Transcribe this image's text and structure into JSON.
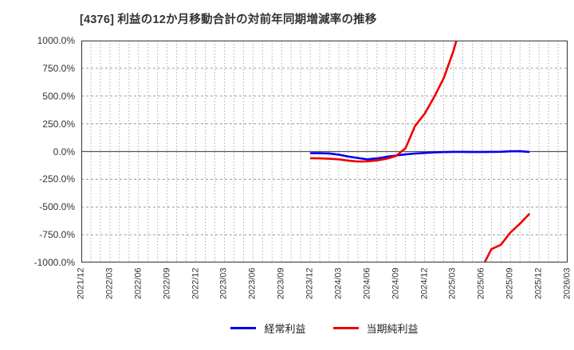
{
  "title": "[4376]  利益の12か月移動合計の対前年同期増減率の推移",
  "chart_data": {
    "type": "line",
    "title": "[4376]  利益の12か月移動合計の対前年同期増減率の推移",
    "x_axis": {
      "tick_labels": [
        "2021/12",
        "2022/03",
        "2022/06",
        "2022/09",
        "2022/12",
        "2023/03",
        "2023/06",
        "2023/09",
        "2023/12",
        "2024/03",
        "2024/06",
        "2024/09",
        "2024/12",
        "2025/03",
        "2025/06",
        "2025/09",
        "2025/12",
        "2026/03"
      ],
      "months_total": 51,
      "tick_interval_months": 3,
      "grid": "monthly-dotted"
    },
    "y_axis": {
      "min": -1000,
      "max": 1000,
      "tick_step": 250,
      "tick_values": [
        1000,
        750,
        500,
        250,
        0,
        -250,
        -500,
        -750,
        -1000
      ],
      "tick_labels": [
        "1000.0%",
        "750.0%",
        "500.0%",
        "250.0%",
        "0.0%",
        "-250.0%",
        "-500.0%",
        "-750.0%",
        "-1000.0%"
      ],
      "unit": "%"
    },
    "legend_position": "bottom-center",
    "series_start_label": "2023/12",
    "note_gap": "red series has missing value (gap) at 2025/05; values beyond ±1000% are clipped by plot area",
    "series": [
      {
        "name": "経常利益",
        "color": "#0000ee",
        "start_month_index": 24,
        "months": [
          "2023/12",
          "2024/01",
          "2024/02",
          "2024/03",
          "2024/04",
          "2024/05",
          "2024/06",
          "2024/07",
          "2024/08",
          "2024/09",
          "2024/10",
          "2024/11",
          "2024/12",
          "2025/01",
          "2025/02",
          "2025/03",
          "2025/04",
          "2025/05",
          "2025/06",
          "2025/07",
          "2025/08",
          "2025/09",
          "2025/10",
          "2025/11"
        ],
        "values": [
          -15,
          -15,
          -17,
          -28,
          -45,
          -58,
          -70,
          -62,
          -48,
          -36,
          -26,
          -18,
          -13,
          -8,
          -5,
          -3,
          -3,
          -4,
          -4,
          -3,
          -2,
          2,
          3,
          -4
        ]
      },
      {
        "name": "当期純利益",
        "color": "#ee0000",
        "start_month_index": 24,
        "months": [
          "2023/12",
          "2024/01",
          "2024/02",
          "2024/03",
          "2024/04",
          "2024/05",
          "2024/06",
          "2024/07",
          "2024/08",
          "2024/09",
          "2024/10",
          "2024/11",
          "2024/12",
          "2025/01",
          "2025/02",
          "2025/03",
          "2025/04",
          "2025/05",
          "2025/06",
          "2025/07",
          "2025/08",
          "2025/09",
          "2025/10",
          "2025/11"
        ],
        "values": [
          -60,
          -62,
          -65,
          -70,
          -82,
          -90,
          -88,
          -80,
          -65,
          -40,
          30,
          230,
          340,
          490,
          660,
          900,
          1200,
          null,
          -1050,
          -880,
          -840,
          -730,
          -650,
          -560
        ]
      }
    ]
  }
}
